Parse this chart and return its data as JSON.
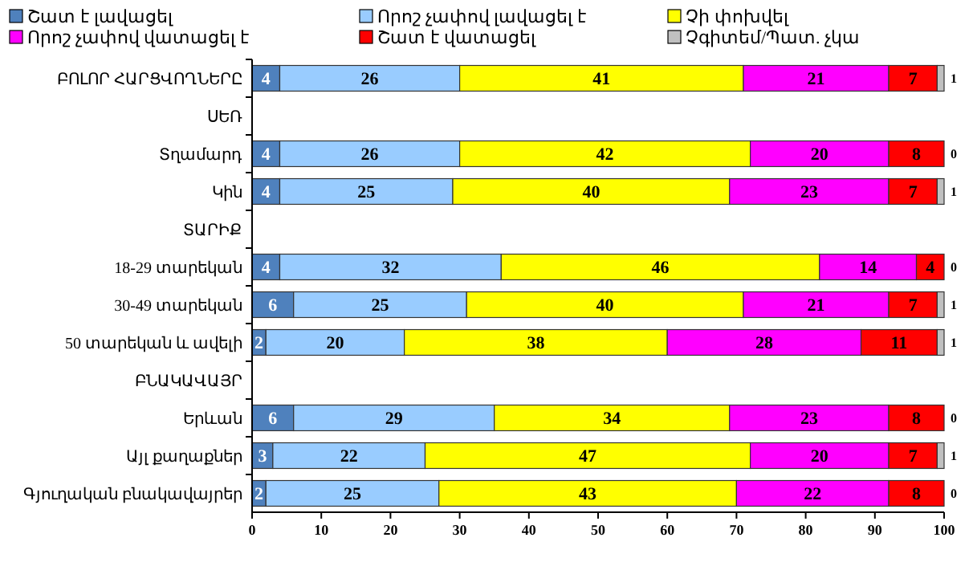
{
  "chart_data": {
    "type": "bar",
    "orientation": "horizontal",
    "stacked": true,
    "data_labels": true,
    "legend": "top",
    "grid": false,
    "categories": [
      "ԲՈԼՈՐ ՀԱՐՑՎՈՂՆԵՐԸ",
      "ՍԵՌ",
      "Տղամարդ",
      "Կին",
      "ՏԱՐԻՔ",
      "18-29 տարեկան",
      "30-49 տարեկան",
      "50 տարեկան և ավելի",
      "ԲՆԱԿԱՎԱՅՐ",
      "Երևան",
      "Այլ քաղաքներ",
      "Գյուղական բնակավայրեր"
    ],
    "series": [
      {
        "name": "Շատ է լավացել",
        "color": "#4f81bd",
        "values": [
          4,
          null,
          4,
          4,
          null,
          4,
          6,
          2,
          null,
          6,
          3,
          2
        ]
      },
      {
        "name": "Որոշ չափով  լավացել է",
        "color": "#99ccff",
        "values": [
          26,
          null,
          26,
          25,
          null,
          32,
          25,
          20,
          null,
          29,
          22,
          25
        ]
      },
      {
        "name": "Չի փոխվել",
        "color": "#ffff00",
        "values": [
          41,
          null,
          42,
          40,
          null,
          46,
          40,
          38,
          null,
          34,
          47,
          43
        ]
      },
      {
        "name": "Որոշ չափով վատացել է",
        "color": "#ff00ff",
        "values": [
          21,
          null,
          20,
          23,
          null,
          14,
          21,
          28,
          null,
          23,
          20,
          22
        ]
      },
      {
        "name": "Շատ է վատացել",
        "color": "#ff0000",
        "values": [
          7,
          null,
          8,
          7,
          null,
          4,
          7,
          11,
          null,
          8,
          7,
          8
        ]
      },
      {
        "name": "Չգիտեմ/Պատ. չկա",
        "color": "#c0c0c0",
        "values": [
          1,
          null,
          0,
          1,
          null,
          0,
          1,
          1,
          null,
          0,
          1,
          0
        ]
      }
    ],
    "xlim": [
      0,
      100
    ],
    "xticks": [
      0,
      10,
      20,
      30,
      40,
      50,
      60,
      70,
      80,
      90,
      100
    ]
  }
}
